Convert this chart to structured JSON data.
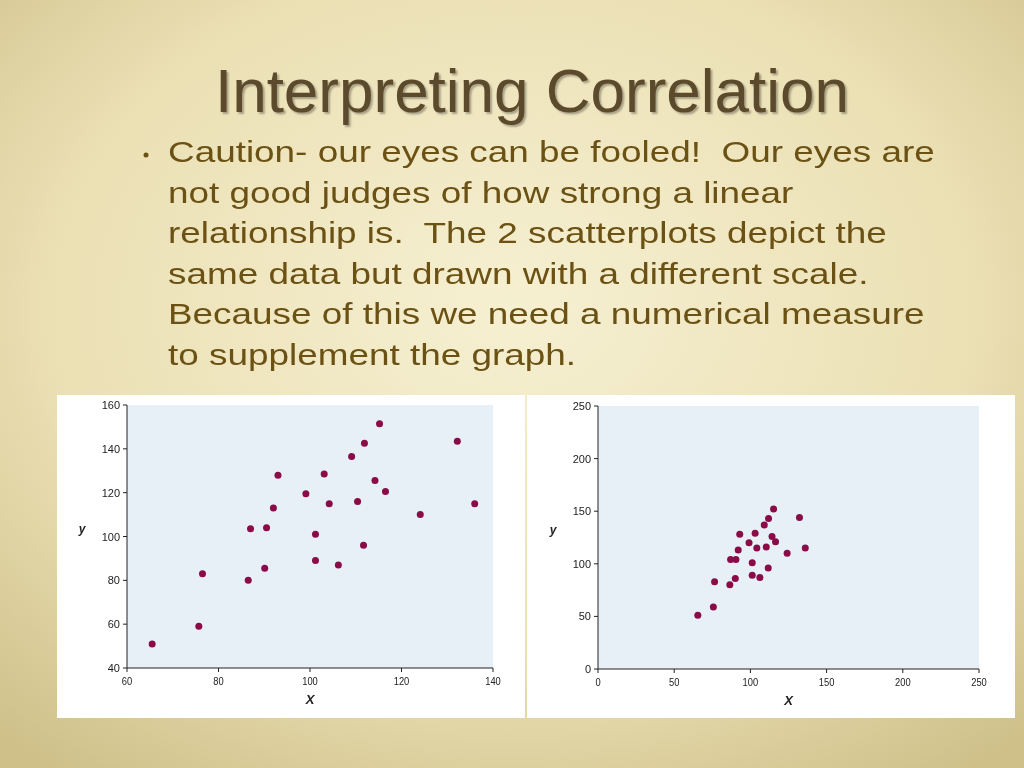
{
  "chart_data": [
    {
      "type": "scatter",
      "title": "Interpreting Correlation",
      "annotations": [
        "Caution- our eyes can be fooled!  Our eyes are not good judges of how strong a linear relationship is.  The 2 scatterplots depict the same data but drawn with a different scale.  Because of this we need a numerical measure to supplement the graph."
      ],
      "xlabel": "X",
      "ylabel": "y",
      "xlim": [
        60,
        140
      ],
      "xticks": [
        60,
        80,
        100,
        120,
        140
      ],
      "ylim": [
        40,
        160
      ],
      "yticks": [
        40,
        60,
        80,
        100,
        120,
        140,
        160
      ],
      "x": [
        65.5,
        75.7,
        76.5,
        86.5,
        87,
        90.1,
        90.5,
        92,
        93,
        99.1,
        101.2,
        101.2,
        103.1,
        104.2,
        106.2,
        109.1,
        110.4,
        111.7,
        111.9,
        114.2,
        115.2,
        116.5,
        124.1,
        132.2,
        136
      ],
      "series": [
        {
          "color": "#8a0b47",
          "values": [
            51,
            59,
            83,
            80,
            103.5,
            85.5,
            104,
            113,
            128,
            119.5,
            89,
            101,
            128.5,
            115,
            87,
            136.5,
            116,
            96,
            142.5,
            125.5,
            151.5,
            120.5,
            110,
            143.5,
            115
          ]
        }
      ]
    },
    {
      "type": "scatter",
      "xlabel": "X",
      "ylabel": "y",
      "xlim": [
        0,
        250
      ],
      "xticks": [
        0,
        50,
        100,
        150,
        200,
        250
      ],
      "ylim": [
        0,
        250
      ],
      "yticks": [
        0,
        50,
        100,
        150,
        200,
        250
      ],
      "x": [
        65.5,
        75.7,
        76.5,
        86.5,
        87,
        90.1,
        90.5,
        92,
        93,
        99.1,
        101.2,
        101.2,
        103.1,
        104.2,
        106.2,
        109.1,
        110.4,
        111.7,
        111.9,
        114.2,
        115.2,
        116.5,
        124.1,
        132.2,
        136
      ],
      "series": [
        {
          "color": "#8a0b47",
          "values": [
            51,
            59,
            83,
            80,
            104,
            86,
            104,
            113,
            128,
            120,
            89,
            101,
            129,
            115,
            87,
            137,
            116,
            96,
            143,
            126,
            152,
            121,
            110,
            144,
            115
          ]
        }
      ]
    }
  ]
}
